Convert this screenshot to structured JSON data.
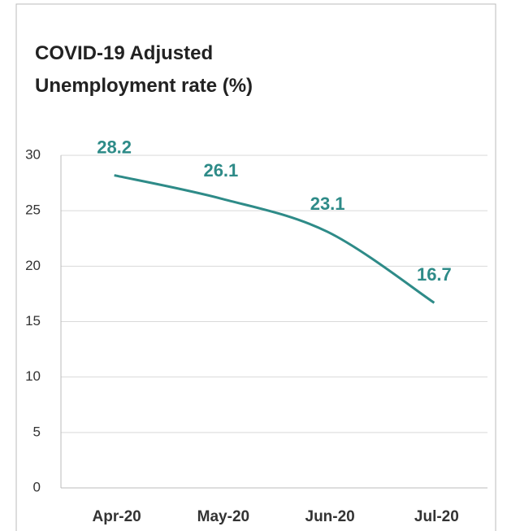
{
  "chart_data": {
    "type": "line",
    "title": "COVID-19 Adjusted Unemployment rate (%)",
    "categories": [
      "Apr-20",
      "May-20",
      "Jun-20",
      "Jul-20"
    ],
    "series": [
      {
        "color": "#2e8b88",
        "values": [
          28.2,
          26.1,
          23.1,
          16.7
        ]
      }
    ],
    "ylim": [
      0,
      30
    ],
    "yticks": [
      0,
      5,
      10,
      15,
      20,
      25,
      30
    ],
    "grid": true
  }
}
